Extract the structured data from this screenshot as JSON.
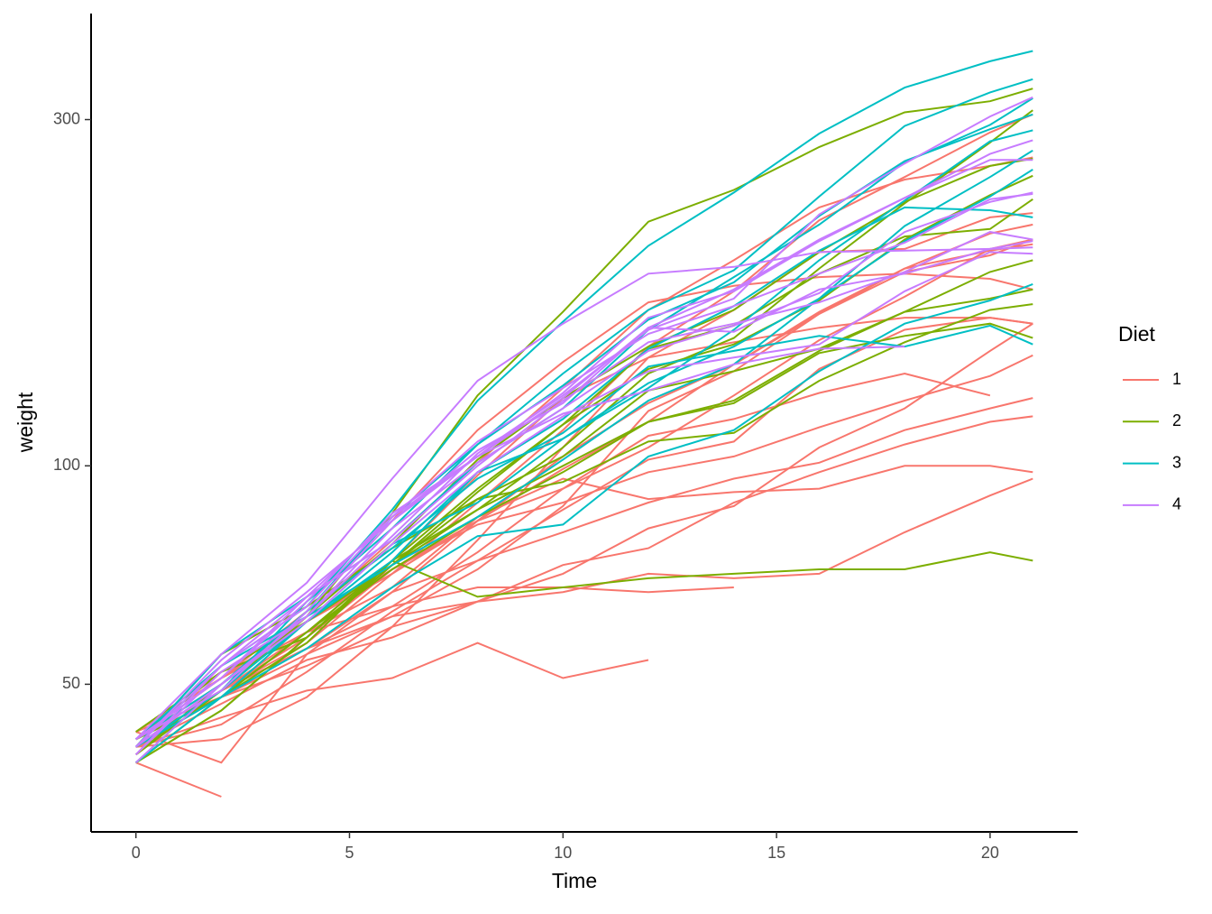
{
  "chart_data": {
    "type": "line",
    "x_label": "Time",
    "y_label": "weight",
    "legend_title": "Diet",
    "log_y": true,
    "legend": "right",
    "x": [
      0,
      2,
      4,
      6,
      8,
      10,
      12,
      14,
      16,
      18,
      20,
      21
    ],
    "xlim": [
      -1.05,
      22.05
    ],
    "xticks": [
      0,
      5,
      10,
      15,
      20
    ],
    "ylim": [
      31.3,
      420
    ],
    "yticks": [
      50,
      100,
      300
    ],
    "series": [
      {
        "name": "1",
        "color": "#F8766D",
        "values": [
          [
            42,
            51,
            59,
            64,
            76,
            93,
            106,
            125,
            149,
            171,
            199,
            205
          ],
          [
            40,
            49,
            58,
            72,
            84,
            103,
            122,
            138,
            162,
            187,
            209,
            215
          ],
          [
            43,
            39,
            55,
            67,
            84,
            99,
            115,
            138,
            163,
            187,
            198,
            202
          ],
          [
            42,
            49,
            56,
            67,
            74,
            87,
            102,
            108,
            136,
            154,
            160,
            157
          ],
          [
            41,
            42,
            48,
            60,
            79,
            106,
            141,
            164,
            197,
            199,
            220,
            223
          ],
          [
            41,
            49,
            59,
            74,
            97,
            124,
            141,
            148,
            155,
            160,
            160,
            157
          ],
          [
            41,
            49,
            57,
            71,
            89,
            112,
            146,
            174,
            218,
            250,
            288,
            305
          ],
          [
            42,
            50,
            61,
            71,
            84,
            93,
            110,
            116,
            126,
            134,
            125,
            null
          ],
          [
            42,
            51,
            59,
            68,
            85,
            96,
            90,
            92,
            93,
            100,
            100,
            98
          ],
          [
            41,
            44,
            52,
            63,
            74,
            81,
            89,
            96,
            101,
            112,
            120,
            124
          ],
          [
            43,
            51,
            63,
            84,
            112,
            139,
            168,
            177,
            182,
            184,
            181,
            175
          ],
          [
            41,
            49,
            56,
            62,
            72,
            88,
            119,
            135,
            162,
            185,
            195,
            205
          ],
          [
            41,
            48,
            53,
            60,
            65,
            67,
            71,
            70,
            71,
            81,
            91,
            96
          ],
          [
            41,
            49,
            62,
            79,
            101,
            128,
            164,
            192,
            227,
            248,
            259,
            266
          ],
          [
            41,
            49,
            56,
            64,
            68,
            68,
            67,
            68,
            null,
            null,
            null,
            null
          ],
          [
            41,
            45,
            49,
            51,
            57,
            51,
            54,
            null,
            null,
            null,
            null,
            null
          ],
          [
            42,
            51,
            61,
            72,
            83,
            89,
            98,
            103,
            113,
            123,
            133,
            142
          ],
          [
            39,
            35,
            null,
            null,
            null,
            null,
            null,
            null,
            null,
            null,
            null,
            null
          ],
          [
            43,
            48,
            55,
            62,
            65,
            71,
            82,
            88,
            106,
            120,
            144,
            157
          ],
          [
            41,
            47,
            54,
            58,
            65,
            73,
            77,
            89,
            98,
            107,
            115,
            117
          ]
        ]
      },
      {
        "name": "2",
        "color": "#7CAE00",
        "values": [
          [
            40,
            50,
            62,
            86,
            125,
            163,
            217,
            240,
            275,
            307,
            318,
            331
          ],
          [
            41,
            55,
            64,
            77,
            90,
            95,
            108,
            111,
            131,
            148,
            164,
            167
          ],
          [
            43,
            52,
            61,
            73,
            90,
            103,
            127,
            135,
            145,
            163,
            170,
            175
          ],
          [
            42,
            52,
            58,
            74,
            66,
            68,
            70,
            71,
            72,
            72,
            76,
            74
          ],
          [
            40,
            49,
            62,
            78,
            102,
            124,
            146,
            164,
            197,
            231,
            259,
            265
          ],
          [
            42,
            48,
            57,
            74,
            93,
            114,
            136,
            147,
            169,
            205,
            236,
            251
          ],
          [
            39,
            46,
            58,
            73,
            87,
            100,
            115,
            123,
            144,
            163,
            185,
            192
          ],
          [
            39,
            46,
            58,
            73,
            92,
            114,
            145,
            156,
            184,
            207,
            212,
            233
          ],
          [
            39,
            48,
            59,
            74,
            87,
            106,
            134,
            150,
            187,
            230,
            279,
            309
          ],
          [
            42,
            48,
            59,
            72,
            85,
            98,
            115,
            122,
            143,
            151,
            157,
            150
          ]
        ]
      },
      {
        "name": "3",
        "color": "#00BFC4",
        "values": [
          [
            42,
            53,
            62,
            73,
            85,
            102,
            123,
            138,
            170,
            204,
            235,
            256
          ],
          [
            41,
            49,
            65,
            82,
            107,
            129,
            159,
            179,
            221,
            263,
            291,
            305
          ],
          [
            39,
            50,
            63,
            77,
            96,
            111,
            137,
            144,
            151,
            146,
            156,
            147
          ],
          [
            41,
            49,
            63,
            85,
            107,
            134,
            164,
            186,
            235,
            294,
            327,
            341
          ],
          [
            41,
            53,
            64,
            87,
            123,
            158,
            201,
            238,
            287,
            332,
            361,
            373
          ],
          [
            39,
            48,
            61,
            76,
            98,
            116,
            145,
            166,
            198,
            227,
            225,
            220
          ],
          [
            41,
            48,
            56,
            68,
            80,
            83,
            103,
            112,
            135,
            157,
            169,
            178
          ],
          [
            41,
            49,
            61,
            74,
            98,
            109,
            128,
            154,
            192,
            232,
            280,
            290
          ],
          [
            42,
            50,
            61,
            78,
            89,
            109,
            130,
            146,
            170,
            214,
            250,
            272
          ],
          [
            41,
            55,
            66,
            79,
            101,
            120,
            154,
            182,
            215,
            262,
            295,
            321
          ]
        ]
      },
      {
        "name": "4",
        "color": "#C77CFF",
        "values": [
          [
            42,
            51,
            66,
            85,
            103,
            124,
            155,
            153,
            175,
            184,
            199,
            204
          ],
          [
            42,
            49,
            63,
            84,
            103,
            126,
            160,
            174,
            204,
            234,
            269,
            281
          ],
          [
            42,
            55,
            69,
            96,
            131,
            157,
            184,
            188,
            197,
            198,
            199,
            200
          ],
          [
            42,
            51,
            65,
            86,
            103,
            118,
            127,
            138,
            145,
            146,
            null,
            null
          ],
          [
            41,
            50,
            61,
            78,
            98,
            117,
            135,
            141,
            147,
            174,
            197,
            196
          ],
          [
            40,
            52,
            62,
            82,
            101,
            120,
            144,
            156,
            173,
            210,
            231,
            238
          ],
          [
            41,
            53,
            66,
            79,
            100,
            123,
            148,
            157,
            168,
            185,
            210,
            205
          ],
          [
            39,
            50,
            62,
            80,
            104,
            125,
            154,
            170,
            222,
            261,
            303,
            322
          ],
          [
            40,
            53,
            64,
            85,
            108,
            128,
            152,
            166,
            184,
            203,
            233,
            237
          ],
          [
            41,
            54,
            67,
            84,
            105,
            122,
            155,
            175,
            205,
            234,
            264,
            264
          ]
        ]
      }
    ]
  }
}
